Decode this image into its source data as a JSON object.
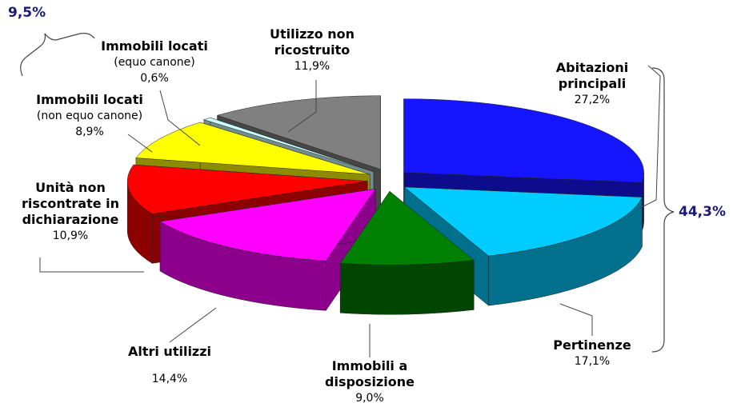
{
  "chart_data": {
    "type": "pie3d",
    "categories": [
      "Abitazioni principali",
      "Pertinenze",
      "Immobili a disposizione",
      "Altri utilizzi",
      "Unità non riscontrate in dichiarazione",
      "Immobili locati",
      "Immobili locati",
      "Utilizzo non ricostruito"
    ],
    "subtitles": [
      null,
      null,
      null,
      null,
      null,
      "(non equo canone)",
      "(equo canone)",
      null
    ],
    "values": [
      27.2,
      17.1,
      9.0,
      14.4,
      10.9,
      8.9,
      0.6,
      11.9
    ],
    "value_labels": [
      "27,2%",
      "17,1%",
      "9,0%",
      "14,4%",
      "10,9%",
      "8,9%",
      "0,6%",
      "11,9%"
    ],
    "colors": [
      "#1515ff",
      "#00ccff",
      "#008000",
      "#ff00ff",
      "#ff0000",
      "#ffff00",
      "#ccffff",
      "#808080"
    ],
    "groups": [
      {
        "value": 44.3,
        "label": "44,3%",
        "color": "#1a1a7a"
      },
      {
        "value": 9.5,
        "label": "9,5%",
        "color": "#1a1a7a"
      }
    ]
  }
}
